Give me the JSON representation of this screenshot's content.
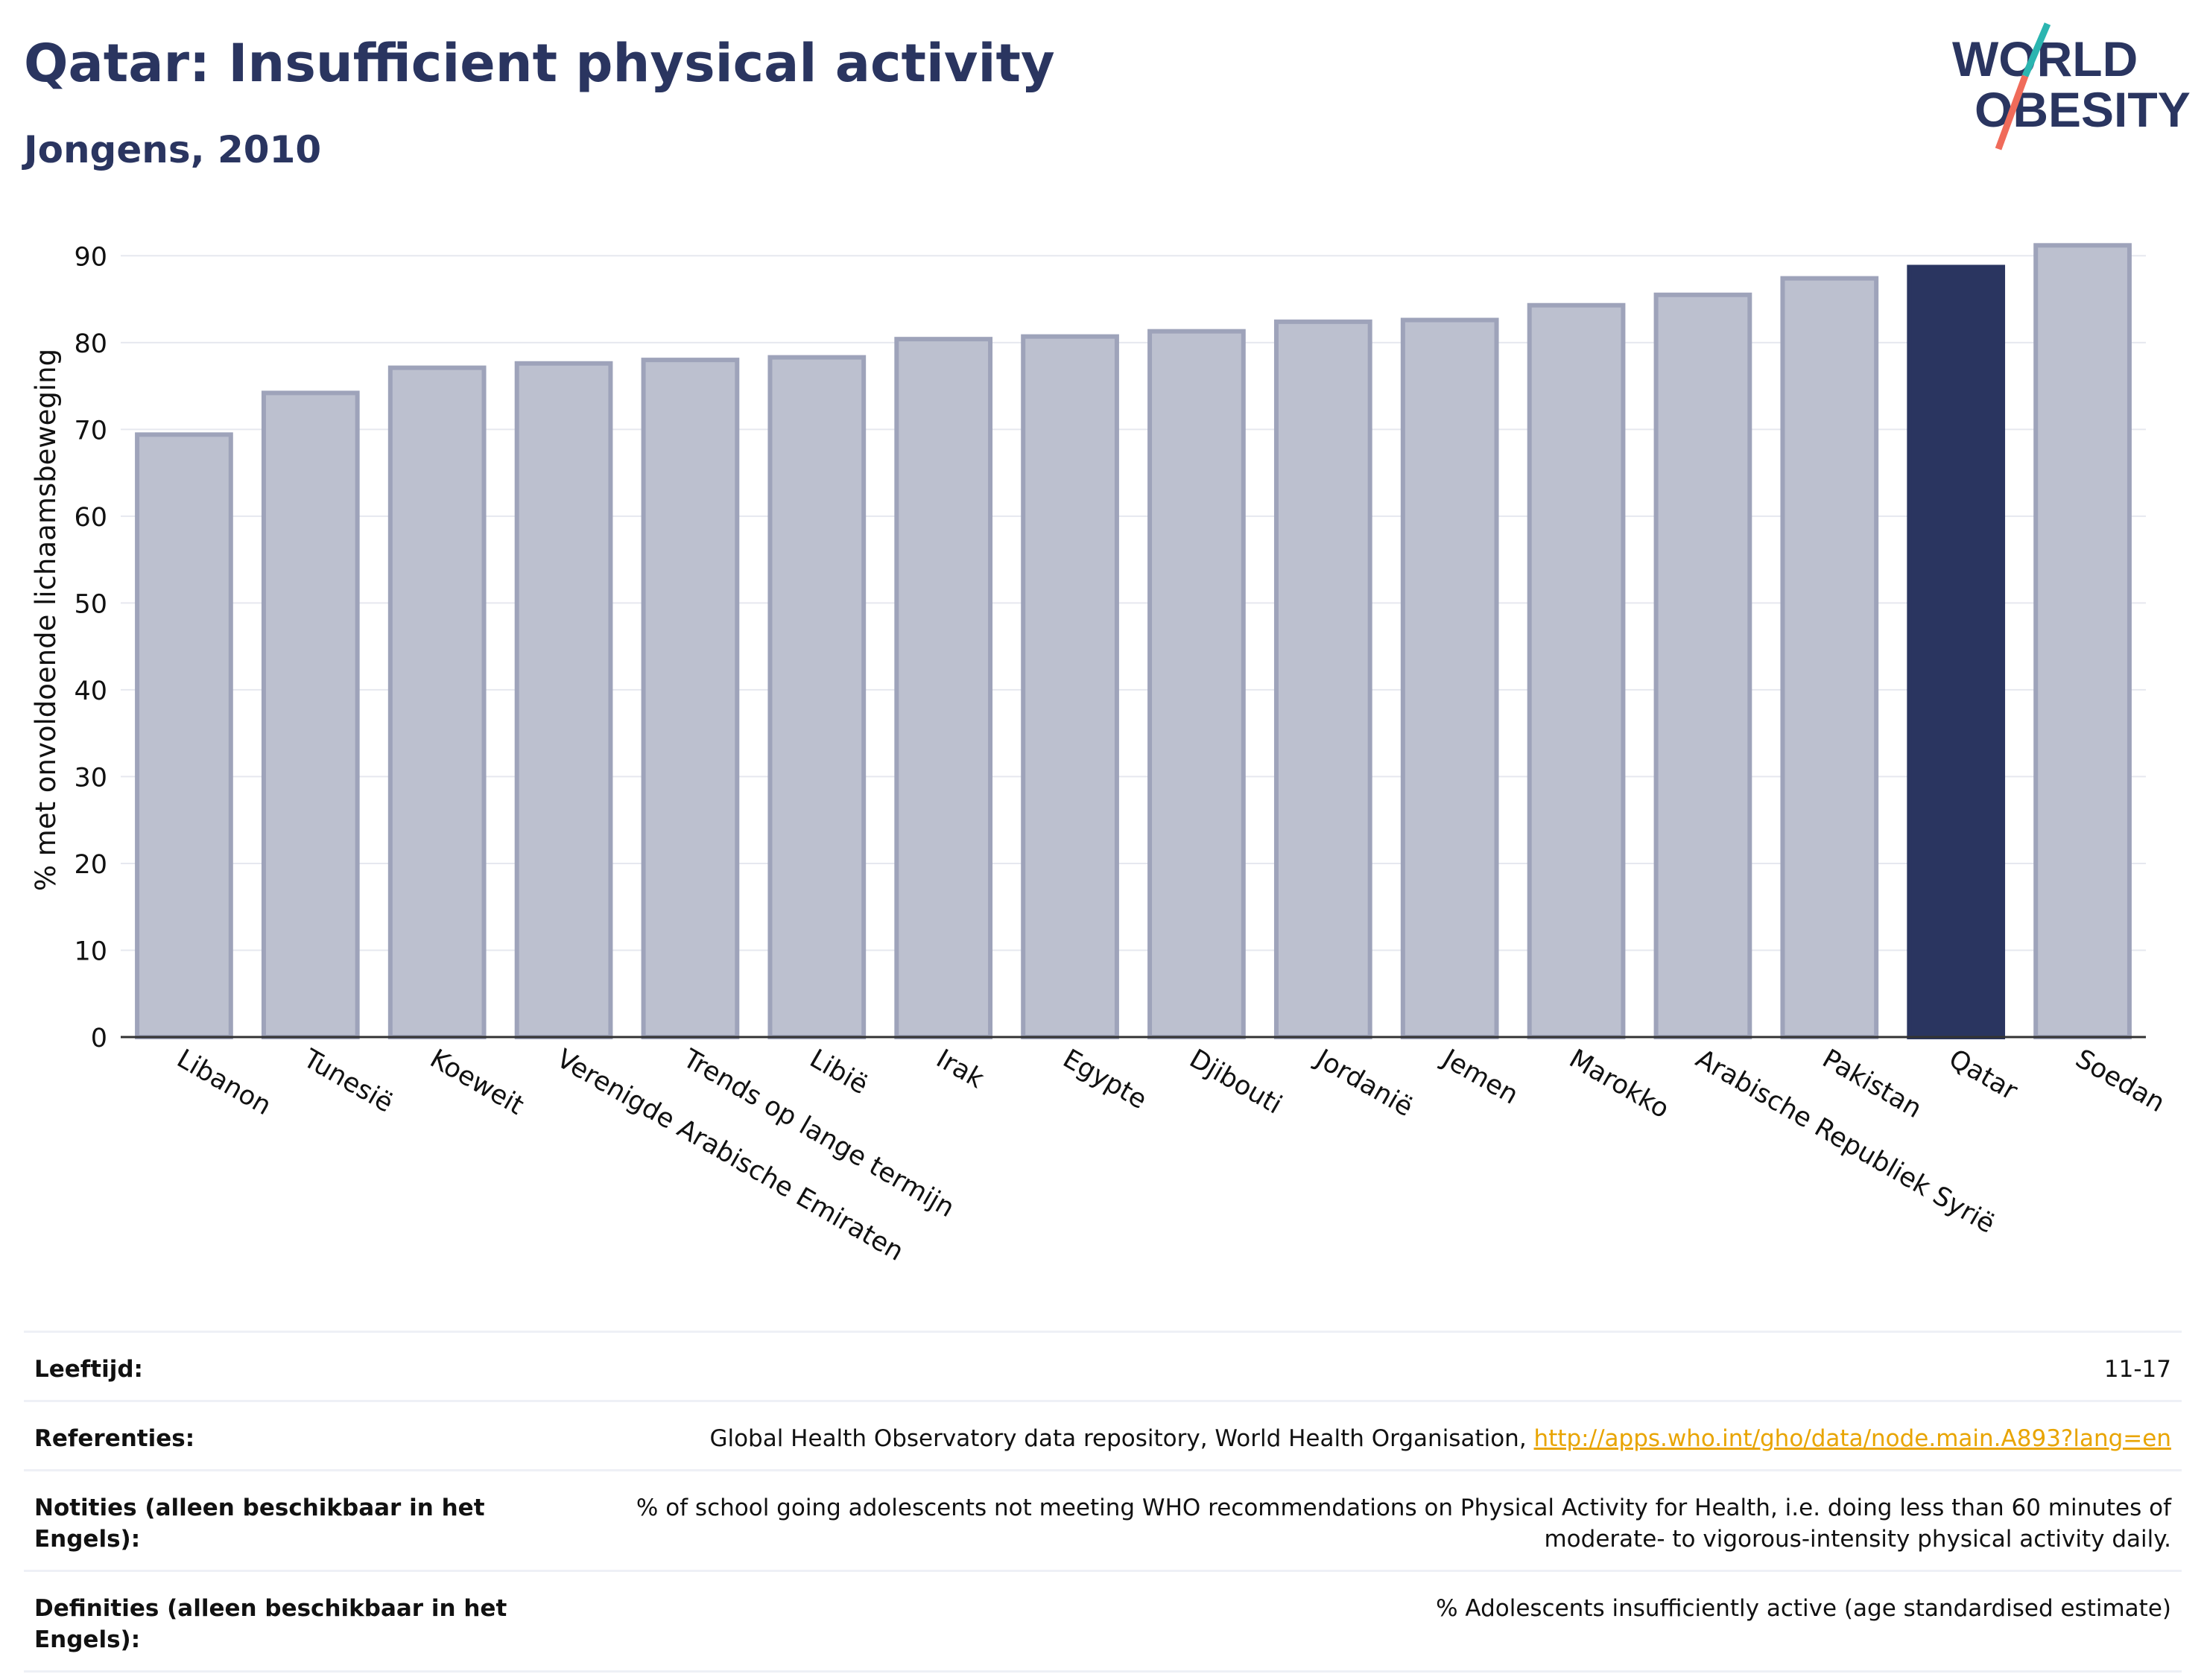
{
  "header": {
    "title": "Qatar: Insufficient physical activity",
    "subtitle": "Jongens, 2010"
  },
  "logo": {
    "line1": "WORLD",
    "line2": "OBESITY",
    "colors": [
      "#2a3560",
      "#2bb5b0",
      "#f06b5a"
    ]
  },
  "chart_data": {
    "type": "bar",
    "ylabel": "% met onvoldoende lichaamsbeweging",
    "ylim": [
      0,
      92
    ],
    "yticks": [
      0,
      10,
      20,
      30,
      40,
      50,
      60,
      70,
      80,
      90
    ],
    "grid": true,
    "categories": [
      "Libanon",
      "Tunesië",
      "Koeweit",
      "Verenigde Arabische Emiraten",
      "Trends op lange termijn",
      "Libië",
      "Irak",
      "Egypte",
      "Djibouti",
      "Jordanië",
      "Jemen",
      "Marokko",
      "Arabische Republiek Syrië",
      "Pakistan",
      "Qatar",
      "Soedan"
    ],
    "values": [
      69.4,
      74.2,
      77.1,
      77.6,
      78.0,
      78.3,
      80.4,
      80.7,
      81.3,
      82.4,
      82.6,
      84.3,
      85.5,
      87.4,
      88.7,
      91.2
    ],
    "highlight": "Qatar",
    "colors": {
      "default_fill": "#bcc0cf",
      "default_stroke": "#9ea3ba",
      "highlight_fill": "#2a3560"
    }
  },
  "info": {
    "age_label": "Leeftijd:",
    "age_value": "11-17",
    "ref_label": "Referenties:",
    "ref_text": "Global Health Observatory data repository, World Health Organisation, ",
    "ref_link": "http://apps.who.int/gho/data/node.main.A893?lang=en",
    "notes_label": "Notities (alleen beschikbaar in het Engels):",
    "notes_value": "% of school going adolescents not meeting WHO recommendations on Physical Activity for Health, i.e. doing less than 60 minutes of moderate- to vigorous-intensity physical activity daily.",
    "def_label": "Definities (alleen beschikbaar in het Engels):",
    "def_value": "% Adolescents insufficiently active (age standardised estimate)"
  }
}
